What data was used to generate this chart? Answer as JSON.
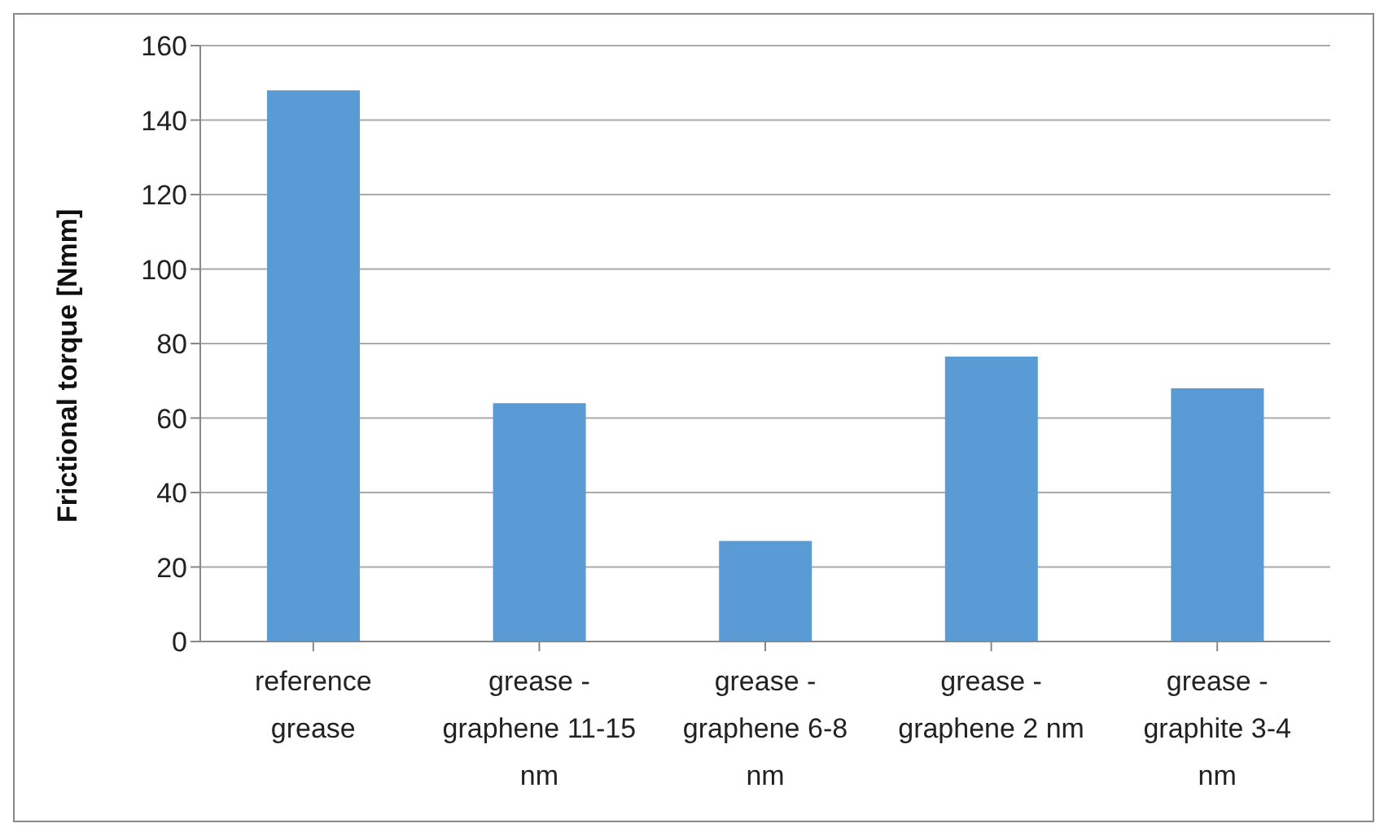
{
  "chart_data": {
    "type": "bar",
    "ylabel": "Frictional torque [Nmm]",
    "categories": [
      "reference grease",
      "grease - graphene 11-15 nm",
      "grease - graphene 6-8 nm",
      "grease - graphene 2 nm",
      "grease - graphite 3-4 nm"
    ],
    "values": [
      148,
      64,
      27,
      76.5,
      68
    ],
    "color": "#5b9bd5",
    "ylim": [
      0,
      160
    ],
    "yticks": [
      0,
      20,
      40,
      60,
      80,
      100,
      120,
      140,
      160
    ],
    "grid": "y"
  }
}
